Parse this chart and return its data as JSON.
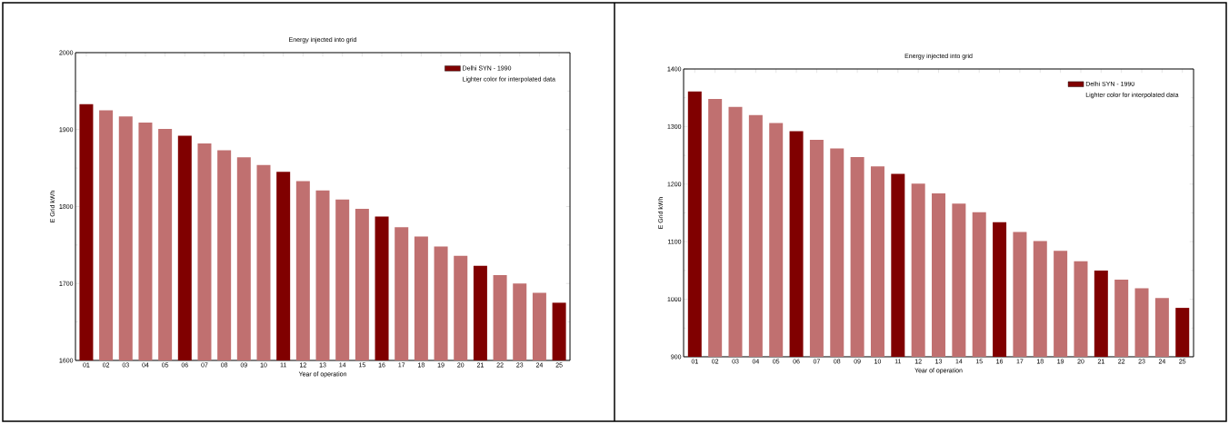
{
  "chart_data": [
    {
      "type": "bar",
      "title": "Energy injected into grid",
      "xlabel": "Year of operation",
      "ylabel": "E Grid kWh",
      "categories": [
        "01",
        "02",
        "03",
        "04",
        "05",
        "06",
        "07",
        "08",
        "09",
        "10",
        "11",
        "12",
        "13",
        "14",
        "15",
        "16",
        "17",
        "18",
        "19",
        "20",
        "21",
        "22",
        "23",
        "24",
        "25"
      ],
      "series": [
        {
          "name": "Delhi SYN - 1990",
          "color": "#800000",
          "values": [
            1933,
            1925,
            1917,
            1909,
            1901,
            1892,
            1882,
            1873,
            1864,
            1854,
            1845,
            1833,
            1821,
            1809,
            1797,
            1787,
            1773,
            1761,
            1748,
            1736,
            1723,
            1711,
            1700,
            1688,
            1675
          ],
          "colors": [
            "#800000",
            "#c07070",
            "#c07070",
            "#c07070",
            "#c07070",
            "#800000",
            "#c07070",
            "#c07070",
            "#c07070",
            "#c07070",
            "#800000",
            "#c07070",
            "#c07070",
            "#c07070",
            "#c07070",
            "#800000",
            "#c07070",
            "#c07070",
            "#c07070",
            "#c07070",
            "#800000",
            "#c07070",
            "#c07070",
            "#c07070",
            "#800000"
          ]
        }
      ],
      "ylim": [
        1600,
        2000
      ],
      "yticks": [
        1600,
        1700,
        1800,
        1900,
        2000
      ],
      "legend": "top right",
      "annotations": [
        "Lighter color for interpolated data"
      ]
    },
    {
      "type": "bar",
      "title": "Energy injected into grid",
      "xlabel": "Year of operation",
      "ylabel": "E Grid kWh",
      "categories": [
        "01",
        "02",
        "03",
        "04",
        "05",
        "06",
        "07",
        "08",
        "09",
        "10",
        "11",
        "12",
        "13",
        "14",
        "15",
        "16",
        "17",
        "18",
        "19",
        "20",
        "21",
        "22",
        "23",
        "24",
        "25"
      ],
      "series": [
        {
          "name": "Delhi SYN - 1990",
          "color": "#800000",
          "values": [
            1361,
            1348,
            1334,
            1320,
            1306,
            1292,
            1277,
            1262,
            1247,
            1231,
            1218,
            1201,
            1184,
            1166,
            1151,
            1134,
            1117,
            1101,
            1084,
            1066,
            1050,
            1034,
            1019,
            1002,
            985
          ],
          "colors": [
            "#800000",
            "#c07070",
            "#c07070",
            "#c07070",
            "#c07070",
            "#800000",
            "#c07070",
            "#c07070",
            "#c07070",
            "#c07070",
            "#800000",
            "#c07070",
            "#c07070",
            "#c07070",
            "#c07070",
            "#800000",
            "#c07070",
            "#c07070",
            "#c07070",
            "#c07070",
            "#800000",
            "#c07070",
            "#c07070",
            "#c07070",
            "#800000"
          ]
        }
      ],
      "ylim": [
        900,
        1400
      ],
      "yticks": [
        900,
        1000,
        1100,
        1200,
        1300,
        1400
      ],
      "legend": "top right",
      "annotations": [
        "Lighter color for interpolated data"
      ]
    }
  ]
}
